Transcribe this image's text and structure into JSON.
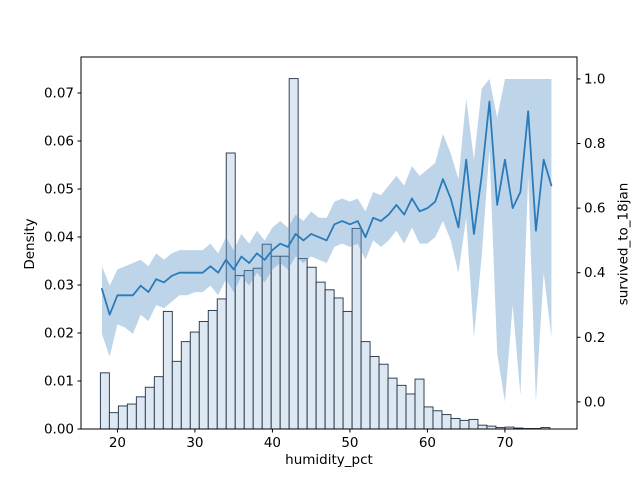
{
  "figure": {
    "xlabel": "humidity_pct",
    "ylabel_left": "Density",
    "ylabel_right": "survived_to_18jan",
    "background": "#ffffff"
  },
  "chart_data": {
    "type": "bar",
    "subtype": "histogram_with_trend_line_and_confidence_band",
    "title": "",
    "xlabel": "humidity_pct",
    "ylabel": "Density",
    "ylabel_right": "survived_to_18jan",
    "x_axis": {
      "range": [
        15.3,
        79.3
      ],
      "tick_values": [
        20,
        30,
        40,
        50,
        60,
        70
      ],
      "tick_labels": [
        "20",
        "30",
        "40",
        "50",
        "60",
        "70"
      ]
    },
    "y_axis_left": {
      "range": [
        0,
        0.0775
      ],
      "tick_values": [
        0.0,
        0.01,
        0.02,
        0.03,
        0.04,
        0.05,
        0.06,
        0.07
      ],
      "tick_labels": [
        "0.00",
        "0.01",
        "0.02",
        "0.03",
        "0.04",
        "0.05",
        "0.06",
        "0.07"
      ]
    },
    "y_axis_right": {
      "range": [
        -0.084,
        1.068
      ],
      "tick_values": [
        0.0,
        0.2,
        0.4,
        0.6,
        0.8,
        1.0
      ],
      "tick_labels": [
        "0.0",
        "0.2",
        "0.4",
        "0.6",
        "0.8",
        "1.0"
      ]
    },
    "grid": false,
    "legend": "none",
    "histogram": {
      "bin_start": 17.8,
      "bin_width": 1.16,
      "densities": [
        0.0117,
        0.0034,
        0.0048,
        0.0052,
        0.0067,
        0.0087,
        0.0109,
        0.0245,
        0.0141,
        0.0182,
        0.0202,
        0.0224,
        0.0247,
        0.0271,
        0.0575,
        0.032,
        0.033,
        0.0335,
        0.0385,
        0.036,
        0.036,
        0.073,
        0.0355,
        0.0337,
        0.0306,
        0.029,
        0.0273,
        0.0245,
        0.0418,
        0.0182,
        0.0151,
        0.0135,
        0.0106,
        0.0091,
        0.0073,
        0.0104,
        0.0046,
        0.0038,
        0.003,
        0.0022,
        0.0018,
        0.002,
        0.0008,
        0.0006,
        0.0003,
        0.0004,
        0.0002,
        0.0001,
        0.0001,
        0.0003
      ],
      "fill": "#dde8f3",
      "edge": "#1f3044"
    },
    "line": {
      "x": [
        18,
        19,
        20,
        21,
        22,
        23,
        24,
        25,
        26,
        27,
        28,
        29,
        30,
        31,
        32,
        33,
        34,
        35,
        36,
        37,
        38,
        39,
        40,
        41,
        42,
        43,
        44,
        45,
        46,
        47,
        48,
        49,
        50,
        51,
        52,
        53,
        54,
        55,
        56,
        57,
        58,
        59,
        60,
        61,
        62,
        63,
        64,
        65,
        66,
        67,
        68,
        69,
        70,
        71,
        72,
        73,
        74,
        75,
        76
      ],
      "y": [
        0.35,
        0.27,
        0.33,
        0.33,
        0.33,
        0.36,
        0.34,
        0.38,
        0.37,
        0.39,
        0.4,
        0.4,
        0.4,
        0.4,
        0.42,
        0.4,
        0.44,
        0.41,
        0.45,
        0.43,
        0.46,
        0.44,
        0.47,
        0.49,
        0.48,
        0.52,
        0.5,
        0.52,
        0.51,
        0.5,
        0.55,
        0.56,
        0.55,
        0.56,
        0.51,
        0.57,
        0.56,
        0.58,
        0.61,
        0.58,
        0.63,
        0.59,
        0.6,
        0.62,
        0.69,
        0.63,
        0.54,
        0.75,
        0.52,
        0.7,
        0.93,
        0.61,
        0.75,
        0.6,
        0.65,
        0.9,
        0.53,
        0.75,
        0.67
      ],
      "color": "#2b7bba"
    },
    "band": {
      "lower": [
        0.21,
        0.14,
        0.24,
        0.23,
        0.21,
        0.27,
        0.25,
        0.3,
        0.29,
        0.31,
        0.33,
        0.33,
        0.34,
        0.34,
        0.36,
        0.33,
        0.38,
        0.34,
        0.39,
        0.36,
        0.4,
        0.37,
        0.41,
        0.43,
        0.41,
        0.45,
        0.43,
        0.45,
        0.44,
        0.43,
        0.48,
        0.49,
        0.48,
        0.49,
        0.44,
        0.5,
        0.48,
        0.5,
        0.53,
        0.49,
        0.54,
        0.49,
        0.49,
        0.51,
        0.56,
        0.5,
        0.4,
        0.57,
        0.2,
        0.45,
        0.78,
        0.15,
        0.0,
        0.3,
        0.02,
        0.7,
        0.0,
        0.4,
        0.2
      ],
      "upper": [
        0.42,
        0.36,
        0.41,
        0.42,
        0.43,
        0.44,
        0.42,
        0.46,
        0.44,
        0.46,
        0.47,
        0.47,
        0.47,
        0.47,
        0.49,
        0.46,
        0.51,
        0.47,
        0.52,
        0.49,
        0.53,
        0.5,
        0.54,
        0.56,
        0.54,
        0.58,
        0.56,
        0.59,
        0.57,
        0.57,
        0.62,
        0.63,
        0.62,
        0.63,
        0.59,
        0.65,
        0.64,
        0.67,
        0.7,
        0.67,
        0.73,
        0.7,
        0.72,
        0.74,
        0.83,
        0.77,
        0.69,
        0.94,
        0.75,
        0.97,
        1.0,
        0.88,
        1.0,
        1.0,
        1.0,
        1.0,
        1.0,
        1.0,
        1.0
      ],
      "color": "rgba(93,150,199,0.40)"
    }
  }
}
